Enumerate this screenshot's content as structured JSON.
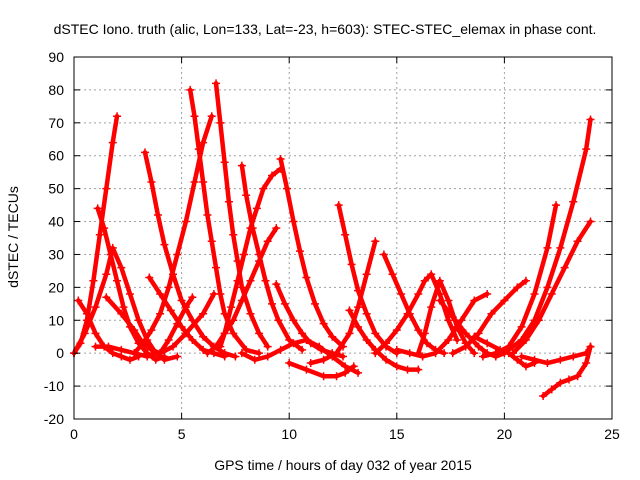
{
  "chart_data": {
    "type": "scatter",
    "title": "dSTEC Iono. truth (alic, Lon=133, Lat=-23, h=603): STEC-STEC_elemax in phase cont.",
    "xlabel": "GPS time / hours of day 032 of year 2015",
    "ylabel": "dSTEC  / TECUs",
    "xlim": [
      0,
      25
    ],
    "ylim": [
      -20,
      90
    ],
    "xticks": [
      0,
      5,
      10,
      15,
      20,
      25
    ],
    "yticks": [
      -20,
      -10,
      0,
      10,
      20,
      30,
      40,
      50,
      60,
      70,
      80,
      90
    ],
    "grid": true,
    "marker": "plus",
    "color": "#ff0000",
    "series": [
      {
        "x": [
          0.0,
          0.3,
          0.6,
          0.9,
          1.2,
          1.5,
          1.8,
          2.0
        ],
        "y": [
          0,
          3,
          10,
          22,
          36,
          50,
          64,
          72
        ]
      },
      {
        "x": [
          0.2,
          0.6,
          1.0,
          1.4,
          1.8,
          2.2,
          2.6,
          3.0
        ],
        "y": [
          16,
          12,
          6,
          2,
          0,
          -1,
          -2,
          -1
        ]
      },
      {
        "x": [
          1.1,
          1.4,
          1.7,
          2.0,
          2.3,
          2.6,
          3.0,
          3.4,
          3.8,
          4.2
        ],
        "y": [
          44,
          38,
          30,
          22,
          14,
          8,
          3,
          0,
          -2,
          -1
        ]
      },
      {
        "x": [
          0.0,
          0.5,
          1.0,
          1.5,
          1.8,
          2.2,
          2.6,
          3.0,
          3.4,
          3.8,
          4.2,
          4.8
        ],
        "y": [
          0,
          6,
          14,
          24,
          32,
          26,
          18,
          10,
          4,
          0,
          -2,
          -1
        ]
      },
      {
        "x": [
          1.0,
          1.6,
          2.2,
          2.8,
          3.4,
          4.0,
          4.6,
          5.2,
          6.0,
          6.5
        ],
        "y": [
          2,
          2,
          1,
          0,
          -1,
          0,
          2,
          6,
          12,
          18
        ]
      },
      {
        "x": [
          1.5,
          2.2,
          2.8,
          3.2,
          3.6,
          4.0,
          4.4,
          4.8,
          5.2,
          5.5
        ],
        "y": [
          17,
          12,
          7,
          3,
          1,
          0,
          4,
          9,
          14,
          17
        ]
      },
      {
        "x": [
          2.8,
          3.2,
          3.6,
          4.0,
          4.4,
          4.8,
          5.2,
          5.6,
          6.0,
          6.4
        ],
        "y": [
          0,
          3,
          7,
          12,
          20,
          30,
          40,
          52,
          64,
          72
        ]
      },
      {
        "x": [
          3.3,
          3.6,
          3.9,
          4.2,
          4.6,
          5.0,
          5.5,
          6.0,
          6.5,
          7.0,
          7.5
        ],
        "y": [
          61,
          52,
          42,
          33,
          24,
          16,
          10,
          5,
          2,
          0,
          -1
        ]
      },
      {
        "x": [
          3.5,
          4.0,
          4.5,
          5.0,
          5.5,
          6.0,
          6.5,
          7.0
        ],
        "y": [
          23,
          18,
          13,
          8,
          4,
          1,
          0,
          -1
        ]
      },
      {
        "x": [
          5.4,
          5.6,
          5.8,
          6.0,
          6.2,
          6.4,
          6.6,
          6.8,
          7.0,
          7.4,
          8.0,
          8.6
        ],
        "y": [
          80,
          72,
          62,
          52,
          42,
          34,
          26,
          18,
          12,
          6,
          1,
          0
        ]
      },
      {
        "x": [
          6.6,
          6.8,
          7.0,
          7.2,
          7.4,
          7.6,
          7.8,
          8.2,
          8.6,
          9.0
        ],
        "y": [
          82,
          70,
          58,
          46,
          36,
          28,
          20,
          12,
          6,
          2
        ]
      },
      {
        "x": [
          6.8,
          7.0,
          7.3,
          7.6,
          7.9,
          8.2,
          8.5,
          8.8,
          9.2,
          9.6
        ],
        "y": [
          2,
          6,
          14,
          22,
          30,
          38,
          44,
          50,
          54,
          56
        ]
      },
      {
        "x": [
          7.8,
          8.0,
          8.3,
          8.6,
          8.9,
          9.2,
          9.5,
          10.0,
          10.6
        ],
        "y": [
          57,
          48,
          38,
          30,
          22,
          15,
          10,
          4,
          1
        ]
      },
      {
        "x": [
          6.2,
          6.6,
          7.0,
          7.4,
          7.8,
          8.2,
          8.6,
          9.0,
          9.4
        ],
        "y": [
          0,
          2,
          6,
          10,
          16,
          22,
          28,
          34,
          38
        ]
      },
      {
        "x": [
          9.6,
          9.9,
          10.2,
          10.5,
          10.8,
          11.2,
          11.6,
          12.0,
          12.5
        ],
        "y": [
          59,
          50,
          40,
          31,
          23,
          15,
          9,
          5,
          2
        ]
      },
      {
        "x": [
          9.4,
          9.8,
          10.2,
          10.6,
          11.0,
          11.5,
          12.0,
          12.5
        ],
        "y": [
          21,
          15,
          10,
          6,
          3,
          1,
          0,
          -1
        ]
      },
      {
        "x": [
          7.8,
          8.4,
          9.0,
          9.6,
          10.2,
          10.8,
          11.4,
          12.0,
          12.6,
          13.2
        ],
        "y": [
          0,
          -2,
          -1,
          1,
          3,
          4,
          2,
          -1,
          -4,
          -6
        ]
      },
      {
        "x": [
          10.0,
          10.8,
          11.6,
          12.2,
          12.6,
          13.0
        ],
        "y": [
          -3,
          -5,
          -7,
          -7,
          -6,
          -4
        ]
      },
      {
        "x": [
          12.3,
          12.6,
          12.9,
          13.2,
          13.6,
          14.0,
          14.5,
          15.0
        ],
        "y": [
          45,
          36,
          27,
          19,
          12,
          6,
          2,
          0
        ]
      },
      {
        "x": [
          11.0,
          11.6,
          12.2,
          12.8,
          13.2,
          13.6,
          14.0
        ],
        "y": [
          -3,
          -2,
          0,
          6,
          14,
          24,
          34
        ]
      },
      {
        "x": [
          12.8,
          13.2,
          13.6,
          14.0,
          14.5,
          15.0,
          15.5,
          16.0
        ],
        "y": [
          13,
          8,
          4,
          1,
          -2,
          -4,
          -5,
          -5
        ]
      },
      {
        "x": [
          14.4,
          14.8,
          15.2,
          15.6,
          16.0,
          16.4,
          16.8,
          17.2
        ],
        "y": [
          30,
          24,
          18,
          12,
          7,
          3,
          1,
          0
        ]
      },
      {
        "x": [
          14.0,
          14.5,
          15.0,
          15.5,
          16.0,
          16.3,
          16.6,
          17.0,
          17.4,
          17.8
        ],
        "y": [
          0,
          3,
          7,
          12,
          18,
          22,
          24,
          18,
          10,
          4
        ]
      },
      {
        "x": [
          16.0,
          16.3,
          16.6,
          17.0,
          17.4,
          17.8,
          18.2,
          18.6
        ],
        "y": [
          0,
          6,
          14,
          22,
          16,
          8,
          3,
          0
        ]
      },
      {
        "x": [
          15.0,
          15.6,
          16.2,
          16.8,
          17.4,
          18.0,
          18.6,
          19.2
        ],
        "y": [
          1,
          0,
          -1,
          0,
          4,
          10,
          16,
          18
        ]
      },
      {
        "x": [
          17.0,
          17.6,
          18.2,
          18.8,
          19.2,
          19.6,
          20.0
        ],
        "y": [
          16,
          11,
          6,
          2,
          0,
          -1,
          0
        ]
      },
      {
        "x": [
          17.6,
          18.2,
          18.8,
          19.4,
          20.0,
          20.6,
          21.0
        ],
        "y": [
          0,
          2,
          6,
          12,
          16,
          20,
          22
        ]
      },
      {
        "x": [
          18.6,
          19.2,
          19.8,
          20.2,
          20.6,
          21.0,
          21.4
        ],
        "y": [
          5,
          3,
          1,
          0,
          -2,
          -4,
          -3
        ]
      },
      {
        "x": [
          19.0,
          19.6,
          20.2,
          20.8,
          21.4,
          22.0,
          22.4
        ],
        "y": [
          -1,
          0,
          2,
          8,
          18,
          32,
          45
        ]
      },
      {
        "x": [
          19.6,
          20.2,
          20.8,
          21.4,
          22.0,
          22.6,
          23.2,
          23.8,
          24.0
        ],
        "y": [
          0,
          1,
          4,
          10,
          20,
          32,
          46,
          62,
          71
        ]
      },
      {
        "x": [
          20.4,
          21.0,
          21.6,
          22.2,
          22.8,
          23.4,
          24.0
        ],
        "y": [
          0,
          4,
          10,
          18,
          26,
          34,
          40
        ]
      },
      {
        "x": [
          20.8,
          21.4,
          22.0,
          22.6,
          23.2,
          23.8,
          24.0
        ],
        "y": [
          -1,
          -2,
          -3,
          -2,
          -1,
          0,
          2
        ]
      },
      {
        "x": [
          21.8,
          22.2,
          22.6,
          23.0,
          23.4,
          23.8,
          24.0
        ],
        "y": [
          -13,
          -11,
          -9,
          -8,
          -7,
          -3,
          2
        ]
      }
    ]
  }
}
